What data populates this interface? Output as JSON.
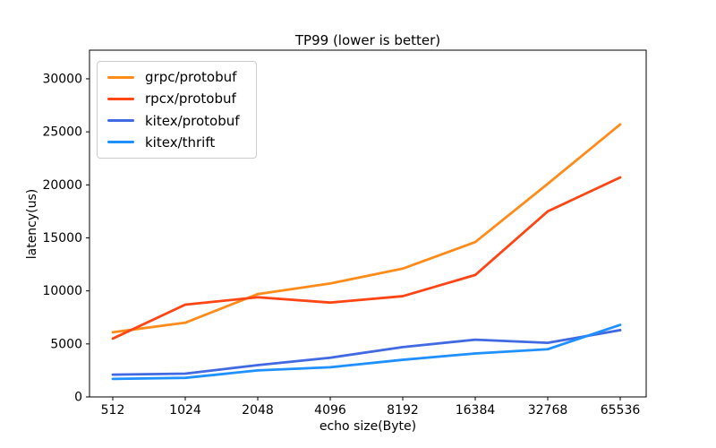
{
  "chart_data": {
    "type": "line",
    "title": "TP99 (lower is better)",
    "xlabel": "echo size(Byte)",
    "ylabel": "latency(us)",
    "categories": [
      "512",
      "1024",
      "2048",
      "4096",
      "8192",
      "16384",
      "32768",
      "65536"
    ],
    "series": [
      {
        "name": "grpc/protobuf",
        "color": "#ff8c1a",
        "values": [
          6100,
          7000,
          9700,
          10700,
          12100,
          14600,
          20100,
          25700
        ]
      },
      {
        "name": "rpcx/protobuf",
        "color": "#ff4514",
        "values": [
          5500,
          8700,
          9400,
          8900,
          9500,
          11500,
          17500,
          20700
        ]
      },
      {
        "name": "kitex/protobuf",
        "color": "#4169e1",
        "values": [
          2100,
          2200,
          3000,
          3700,
          4700,
          5400,
          5100,
          6300
        ]
      },
      {
        "name": "kitex/thrift",
        "color": "#1e90ff",
        "values": [
          1700,
          1800,
          2500,
          2800,
          3500,
          4100,
          4500,
          6800
        ]
      }
    ],
    "yticks": [
      0,
      5000,
      10000,
      15000,
      20000,
      25000,
      30000
    ],
    "ylim": [
      0,
      32700
    ],
    "legend_position": "upper left",
    "grid": false
  },
  "style": {
    "spine_color": "#000000",
    "tick_color": "#000000",
    "text_color": "#000000",
    "legend_border_color": "#cccccc",
    "background": "#ffffff"
  }
}
